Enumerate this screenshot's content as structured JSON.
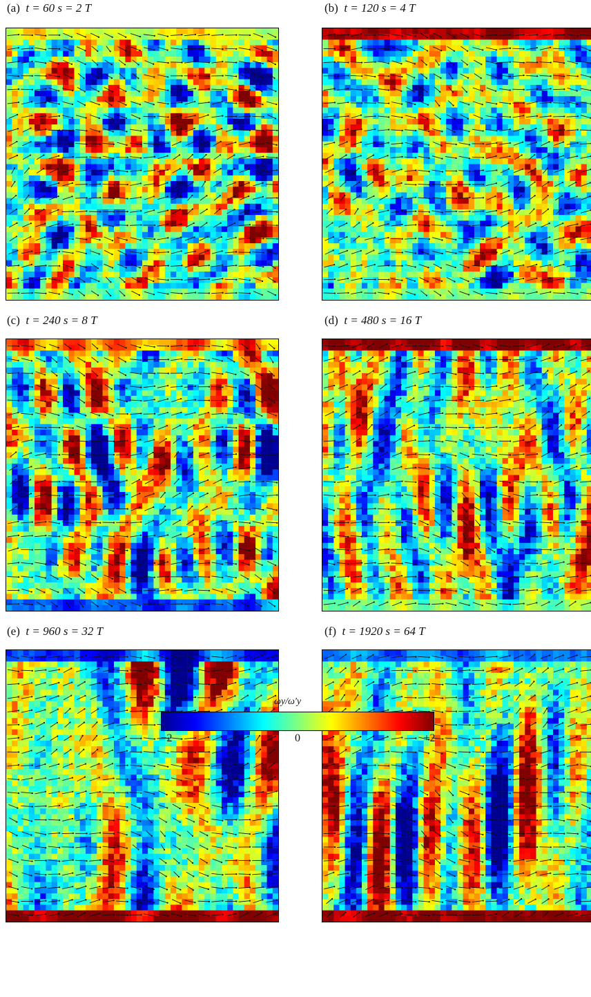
{
  "panels": [
    {
      "id": "a",
      "label": "(a)",
      "caption": "t = 60 s = 2 T",
      "seed": 11,
      "streak": 0.0,
      "wall_top": 0.2,
      "wall_bottom": 0.0
    },
    {
      "id": "b",
      "label": "(b)",
      "caption": "t = 120 s = 4 T",
      "seed": 23,
      "streak": 0.15,
      "wall_top": 0.9,
      "wall_bottom": 0.0
    },
    {
      "id": "c",
      "label": "(c)",
      "caption": "t = 240 s = 8 T",
      "seed": 37,
      "streak": 0.7,
      "wall_top": 0.5,
      "wall_bottom": -0.6
    },
    {
      "id": "d",
      "label": "(d)",
      "caption": "t = 480 s = 16 T",
      "seed": 41,
      "streak": 0.85,
      "wall_top": 1.0,
      "wall_bottom": 0.0
    },
    {
      "id": "e",
      "label": "(e)",
      "caption": "t = 960 s = 32 T",
      "seed": 53,
      "streak": 0.9,
      "wall_top": -0.7,
      "wall_bottom": 1.0
    },
    {
      "id": "f",
      "label": "(f)",
      "caption": "t = 1920 s = 64 T",
      "seed": 67,
      "streak": 0.95,
      "wall_top": -0.5,
      "wall_bottom": 1.0
    }
  ],
  "colorbar": {
    "label": "ωy/ω′y",
    "ticks": [
      {
        "value": -2,
        "text": "−2"
      },
      {
        "value": 0,
        "text": "0"
      },
      {
        "value": 2,
        "text": "+2"
      }
    ],
    "range": [
      -2,
      2
    ],
    "colormap": [
      "#00008f",
      "#0000ff",
      "#0080ff",
      "#00ffff",
      "#80ff80",
      "#ffff00",
      "#ff8000",
      "#ff0000",
      "#800000"
    ]
  }
}
